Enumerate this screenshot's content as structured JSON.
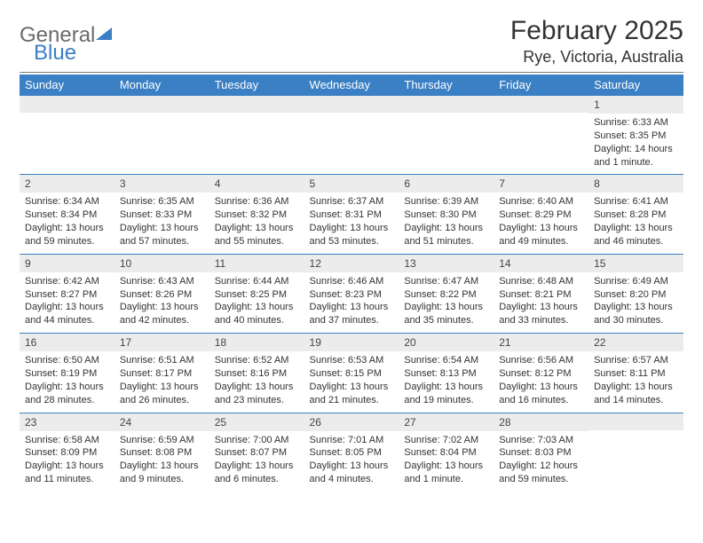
{
  "brand": {
    "word1": "General",
    "word2": "Blue"
  },
  "title": "February 2025",
  "location": "Rye, Victoria, Australia",
  "colors": {
    "header_bg": "#3b7fc4",
    "header_text": "#ffffff",
    "daynum_bg": "#ececec",
    "rule": "#3b7fc4",
    "body_text": "#333333"
  },
  "columns": [
    "Sunday",
    "Monday",
    "Tuesday",
    "Wednesday",
    "Thursday",
    "Friday",
    "Saturday"
  ],
  "weeks": [
    [
      null,
      null,
      null,
      null,
      null,
      null,
      {
        "n": "1",
        "sunrise": "Sunrise: 6:33 AM",
        "sunset": "Sunset: 8:35 PM",
        "daylight": "Daylight: 14 hours and 1 minute."
      }
    ],
    [
      {
        "n": "2",
        "sunrise": "Sunrise: 6:34 AM",
        "sunset": "Sunset: 8:34 PM",
        "daylight": "Daylight: 13 hours and 59 minutes."
      },
      {
        "n": "3",
        "sunrise": "Sunrise: 6:35 AM",
        "sunset": "Sunset: 8:33 PM",
        "daylight": "Daylight: 13 hours and 57 minutes."
      },
      {
        "n": "4",
        "sunrise": "Sunrise: 6:36 AM",
        "sunset": "Sunset: 8:32 PM",
        "daylight": "Daylight: 13 hours and 55 minutes."
      },
      {
        "n": "5",
        "sunrise": "Sunrise: 6:37 AM",
        "sunset": "Sunset: 8:31 PM",
        "daylight": "Daylight: 13 hours and 53 minutes."
      },
      {
        "n": "6",
        "sunrise": "Sunrise: 6:39 AM",
        "sunset": "Sunset: 8:30 PM",
        "daylight": "Daylight: 13 hours and 51 minutes."
      },
      {
        "n": "7",
        "sunrise": "Sunrise: 6:40 AM",
        "sunset": "Sunset: 8:29 PM",
        "daylight": "Daylight: 13 hours and 49 minutes."
      },
      {
        "n": "8",
        "sunrise": "Sunrise: 6:41 AM",
        "sunset": "Sunset: 8:28 PM",
        "daylight": "Daylight: 13 hours and 46 minutes."
      }
    ],
    [
      {
        "n": "9",
        "sunrise": "Sunrise: 6:42 AM",
        "sunset": "Sunset: 8:27 PM",
        "daylight": "Daylight: 13 hours and 44 minutes."
      },
      {
        "n": "10",
        "sunrise": "Sunrise: 6:43 AM",
        "sunset": "Sunset: 8:26 PM",
        "daylight": "Daylight: 13 hours and 42 minutes."
      },
      {
        "n": "11",
        "sunrise": "Sunrise: 6:44 AM",
        "sunset": "Sunset: 8:25 PM",
        "daylight": "Daylight: 13 hours and 40 minutes."
      },
      {
        "n": "12",
        "sunrise": "Sunrise: 6:46 AM",
        "sunset": "Sunset: 8:23 PM",
        "daylight": "Daylight: 13 hours and 37 minutes."
      },
      {
        "n": "13",
        "sunrise": "Sunrise: 6:47 AM",
        "sunset": "Sunset: 8:22 PM",
        "daylight": "Daylight: 13 hours and 35 minutes."
      },
      {
        "n": "14",
        "sunrise": "Sunrise: 6:48 AM",
        "sunset": "Sunset: 8:21 PM",
        "daylight": "Daylight: 13 hours and 33 minutes."
      },
      {
        "n": "15",
        "sunrise": "Sunrise: 6:49 AM",
        "sunset": "Sunset: 8:20 PM",
        "daylight": "Daylight: 13 hours and 30 minutes."
      }
    ],
    [
      {
        "n": "16",
        "sunrise": "Sunrise: 6:50 AM",
        "sunset": "Sunset: 8:19 PM",
        "daylight": "Daylight: 13 hours and 28 minutes."
      },
      {
        "n": "17",
        "sunrise": "Sunrise: 6:51 AM",
        "sunset": "Sunset: 8:17 PM",
        "daylight": "Daylight: 13 hours and 26 minutes."
      },
      {
        "n": "18",
        "sunrise": "Sunrise: 6:52 AM",
        "sunset": "Sunset: 8:16 PM",
        "daylight": "Daylight: 13 hours and 23 minutes."
      },
      {
        "n": "19",
        "sunrise": "Sunrise: 6:53 AM",
        "sunset": "Sunset: 8:15 PM",
        "daylight": "Daylight: 13 hours and 21 minutes."
      },
      {
        "n": "20",
        "sunrise": "Sunrise: 6:54 AM",
        "sunset": "Sunset: 8:13 PM",
        "daylight": "Daylight: 13 hours and 19 minutes."
      },
      {
        "n": "21",
        "sunrise": "Sunrise: 6:56 AM",
        "sunset": "Sunset: 8:12 PM",
        "daylight": "Daylight: 13 hours and 16 minutes."
      },
      {
        "n": "22",
        "sunrise": "Sunrise: 6:57 AM",
        "sunset": "Sunset: 8:11 PM",
        "daylight": "Daylight: 13 hours and 14 minutes."
      }
    ],
    [
      {
        "n": "23",
        "sunrise": "Sunrise: 6:58 AM",
        "sunset": "Sunset: 8:09 PM",
        "daylight": "Daylight: 13 hours and 11 minutes."
      },
      {
        "n": "24",
        "sunrise": "Sunrise: 6:59 AM",
        "sunset": "Sunset: 8:08 PM",
        "daylight": "Daylight: 13 hours and 9 minutes."
      },
      {
        "n": "25",
        "sunrise": "Sunrise: 7:00 AM",
        "sunset": "Sunset: 8:07 PM",
        "daylight": "Daylight: 13 hours and 6 minutes."
      },
      {
        "n": "26",
        "sunrise": "Sunrise: 7:01 AM",
        "sunset": "Sunset: 8:05 PM",
        "daylight": "Daylight: 13 hours and 4 minutes."
      },
      {
        "n": "27",
        "sunrise": "Sunrise: 7:02 AM",
        "sunset": "Sunset: 8:04 PM",
        "daylight": "Daylight: 13 hours and 1 minute."
      },
      {
        "n": "28",
        "sunrise": "Sunrise: 7:03 AM",
        "sunset": "Sunset: 8:03 PM",
        "daylight": "Daylight: 12 hours and 59 minutes."
      },
      null
    ]
  ]
}
